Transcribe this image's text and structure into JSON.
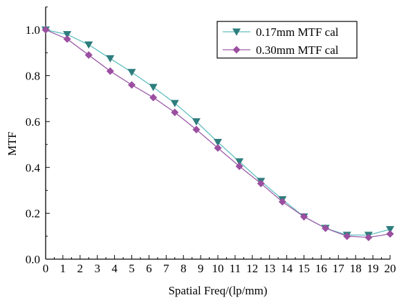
{
  "chart_data": {
    "type": "line",
    "xlabel": "Spatial Freq/(lp/mm)",
    "ylabel": "MTF",
    "xlim": [
      0,
      20
    ],
    "ylim": [
      0,
      1.1
    ],
    "x_ticks": [
      "0",
      "1",
      "2",
      "3",
      "4",
      "5",
      "6",
      "7",
      "8",
      "9",
      "10",
      "11",
      "12",
      "13",
      "14",
      "15",
      "16",
      "17",
      "18",
      "19",
      "20"
    ],
    "y_ticks": [
      "0.0",
      "0.2",
      "0.4",
      "0.6",
      "0.8",
      "1.0"
    ],
    "grid": false,
    "legend_position": "top-right",
    "x": [
      0,
      1.25,
      2.5,
      3.75,
      5.0,
      6.25,
      7.5,
      8.75,
      10.0,
      11.25,
      12.5,
      13.75,
      15.0,
      16.25,
      17.5,
      18.75,
      20.0
    ],
    "series": [
      {
        "name": "0.17mm MTF cal",
        "marker": "triangle-down",
        "line_color": "#5fbdbd",
        "marker_color": "#2e7d7d",
        "values": [
          1.0,
          0.98,
          0.935,
          0.875,
          0.815,
          0.75,
          0.68,
          0.6,
          0.51,
          0.425,
          0.34,
          0.26,
          0.185,
          0.135,
          0.105,
          0.105,
          0.13
        ]
      },
      {
        "name": "0.30mm MTF cal",
        "marker": "diamond",
        "line_color": "#9b5aa8",
        "marker_color": "#9b4fa0",
        "values": [
          1.0,
          0.96,
          0.89,
          0.82,
          0.76,
          0.705,
          0.64,
          0.565,
          0.485,
          0.405,
          0.33,
          0.25,
          0.185,
          0.135,
          0.1,
          0.095,
          0.11
        ]
      }
    ]
  }
}
